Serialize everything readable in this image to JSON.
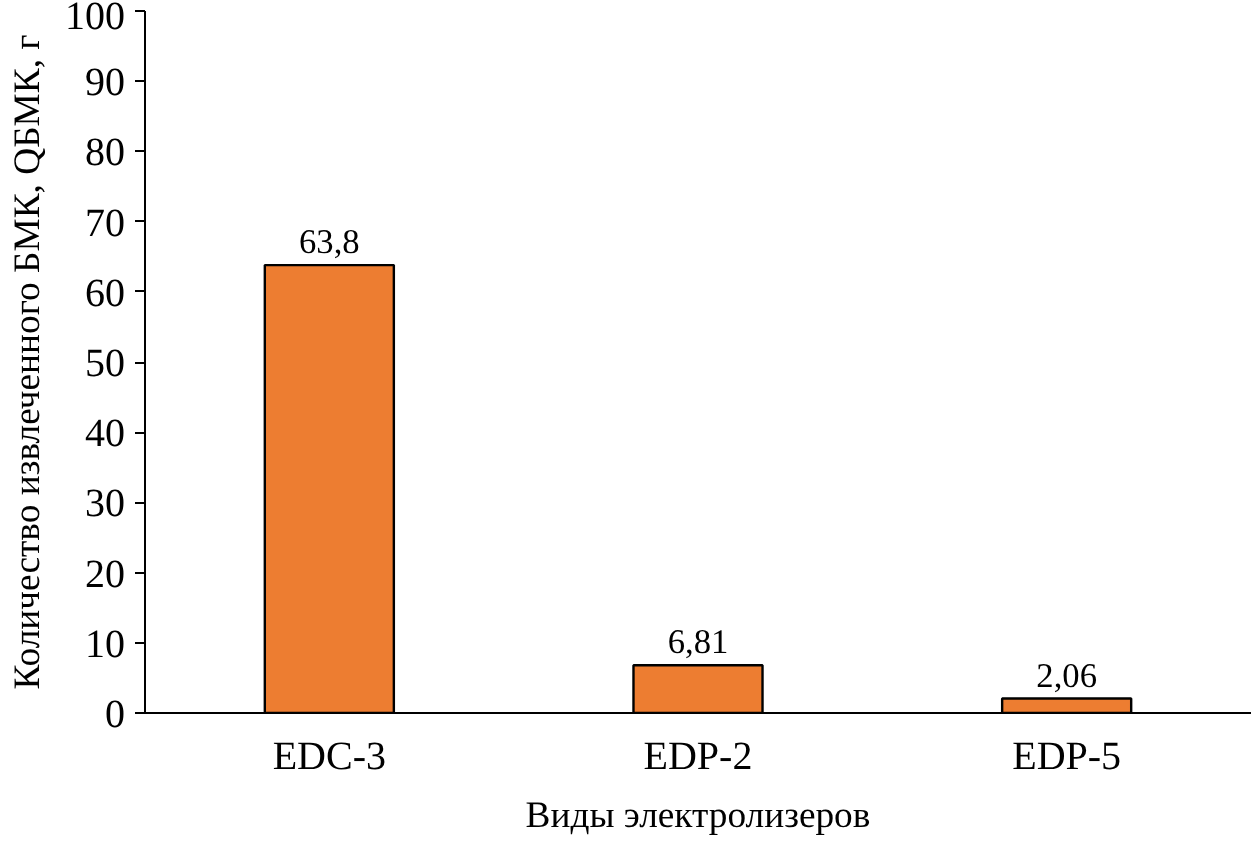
{
  "chart_data": {
    "type": "bar",
    "xlabel": "Виды электролизеров",
    "ylabel": "Количество извлеченного БМК, QБМК, г",
    "categories": [
      "EDC-3",
      "EDP-2",
      "EDP-5"
    ],
    "values": [
      63.8,
      6.81,
      2.06
    ],
    "value_labels": [
      "63,8",
      "6,81",
      "2,06"
    ],
    "color": "#ed7d31",
    "ylim": [
      0,
      100
    ],
    "yticks": [
      0,
      10,
      20,
      30,
      40,
      50,
      60,
      70,
      80,
      90,
      100
    ],
    "grid": false
  }
}
